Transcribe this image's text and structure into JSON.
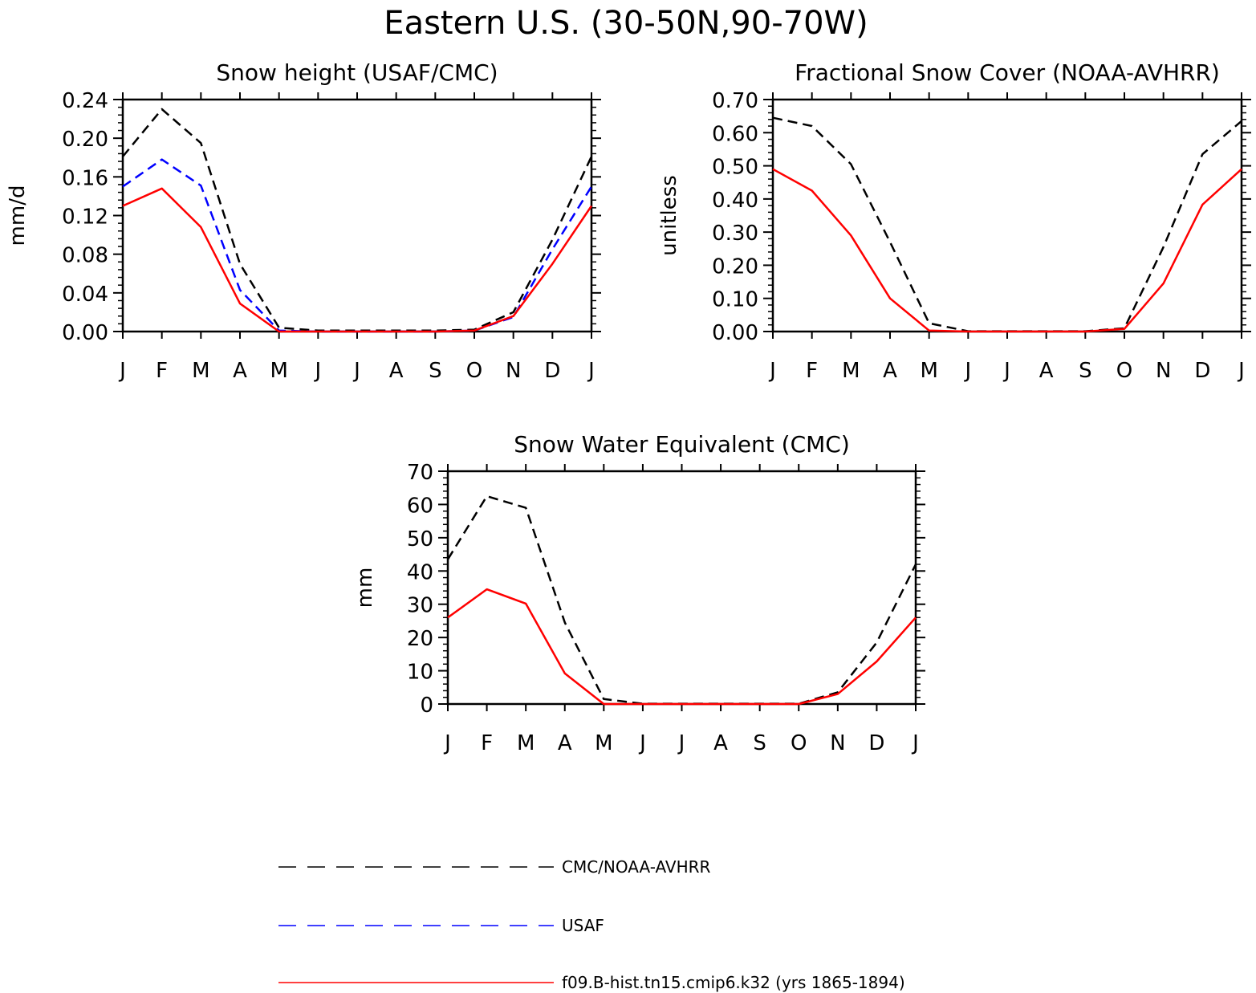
{
  "figure_title": "Eastern U.S. (30-50N,90-70W)",
  "colors": {
    "obs": "#000000",
    "usaf": "#0000ff",
    "model": "#ff0000"
  },
  "legend": [
    {
      "key": "obs",
      "label": "CMC/NOAA-AVHRR",
      "style": "dashed"
    },
    {
      "key": "usaf",
      "label": "USAF",
      "style": "dashed"
    },
    {
      "key": "model",
      "label": "f09.B-hist.tn15.cmip6.k32 (yrs 1865-1894)",
      "style": "solid"
    }
  ],
  "chart_data": [
    {
      "type": "line",
      "title": "Snow height (USAF/CMC)",
      "xlabel": "",
      "ylabel": "mm/d",
      "categories": [
        "J",
        "F",
        "M",
        "A",
        "M",
        "J",
        "J",
        "A",
        "S",
        "O",
        "N",
        "D",
        "J"
      ],
      "ylim": [
        0,
        0.24
      ],
      "yticks": [
        "0.00",
        "0.04",
        "0.08",
        "0.12",
        "0.16",
        "0.20",
        "0.24"
      ],
      "series": [
        {
          "key": "obs",
          "name": "CMC/NOAA-AVHRR",
          "style": "dashed",
          "values": [
            0.181,
            0.23,
            0.195,
            0.07,
            0.004,
            0.001,
            0.001,
            0.001,
            0.001,
            0.002,
            0.02,
            0.095,
            0.181
          ]
        },
        {
          "key": "usaf",
          "name": "USAF",
          "style": "dashed",
          "values": [
            0.15,
            0.178,
            0.151,
            0.043,
            0.001,
            0.0,
            0.0,
            0.0,
            0.0,
            0.001,
            0.015,
            0.085,
            0.15
          ]
        },
        {
          "key": "model",
          "name": "f09.B-hist.tn15.cmip6.k32 (yrs 1865-1894)",
          "style": "solid",
          "values": [
            0.13,
            0.148,
            0.108,
            0.029,
            0.0,
            0.0,
            0.0,
            0.0,
            0.0,
            0.001,
            0.016,
            0.07,
            0.13
          ]
        }
      ]
    },
    {
      "type": "line",
      "title": "Fractional Snow Cover (NOAA-AVHRR)",
      "xlabel": "",
      "ylabel": "unitless",
      "categories": [
        "J",
        "F",
        "M",
        "A",
        "M",
        "J",
        "J",
        "A",
        "S",
        "O",
        "N",
        "D",
        "J"
      ],
      "ylim": [
        0,
        0.7
      ],
      "yticks": [
        "0.00",
        "0.10",
        "0.20",
        "0.30",
        "0.40",
        "0.50",
        "0.60",
        "0.70"
      ],
      "series": [
        {
          "key": "obs",
          "name": "CMC/NOAA-AVHRR",
          "style": "dashed",
          "values": [
            0.645,
            0.62,
            0.505,
            0.27,
            0.025,
            0.001,
            0.001,
            0.001,
            0.001,
            0.01,
            0.255,
            0.535,
            0.635
          ]
        },
        {
          "key": "model",
          "name": "f09.B-hist.tn15.cmip6.k32 (yrs 1865-1894)",
          "style": "solid",
          "values": [
            0.49,
            0.425,
            0.29,
            0.1,
            0.003,
            0.0,
            0.0,
            0.0,
            0.0,
            0.008,
            0.145,
            0.383,
            0.49
          ]
        }
      ]
    },
    {
      "type": "line",
      "title": "Snow Water Equivalent (CMC)",
      "xlabel": "",
      "ylabel": "mm",
      "categories": [
        "J",
        "F",
        "M",
        "A",
        "M",
        "J",
        "J",
        "A",
        "S",
        "O",
        "N",
        "D",
        "J"
      ],
      "ylim": [
        0,
        70
      ],
      "yticks": [
        "0",
        "10",
        "20",
        "30",
        "40",
        "50",
        "60",
        "70"
      ],
      "series": [
        {
          "key": "obs",
          "name": "CMC/NOAA-AVHRR",
          "style": "dashed",
          "values": [
            43.5,
            62.5,
            59.0,
            24.5,
            1.5,
            0.1,
            0.1,
            0.1,
            0.1,
            0.1,
            3.5,
            18.5,
            42.0
          ]
        },
        {
          "key": "model",
          "name": "f09.B-hist.tn15.cmip6.k32 (yrs 1865-1894)",
          "style": "solid",
          "values": [
            26.0,
            34.5,
            30.2,
            9.2,
            0.0,
            0.0,
            0.0,
            0.0,
            0.0,
            0.0,
            3.0,
            12.8,
            26.0
          ]
        }
      ]
    }
  ]
}
